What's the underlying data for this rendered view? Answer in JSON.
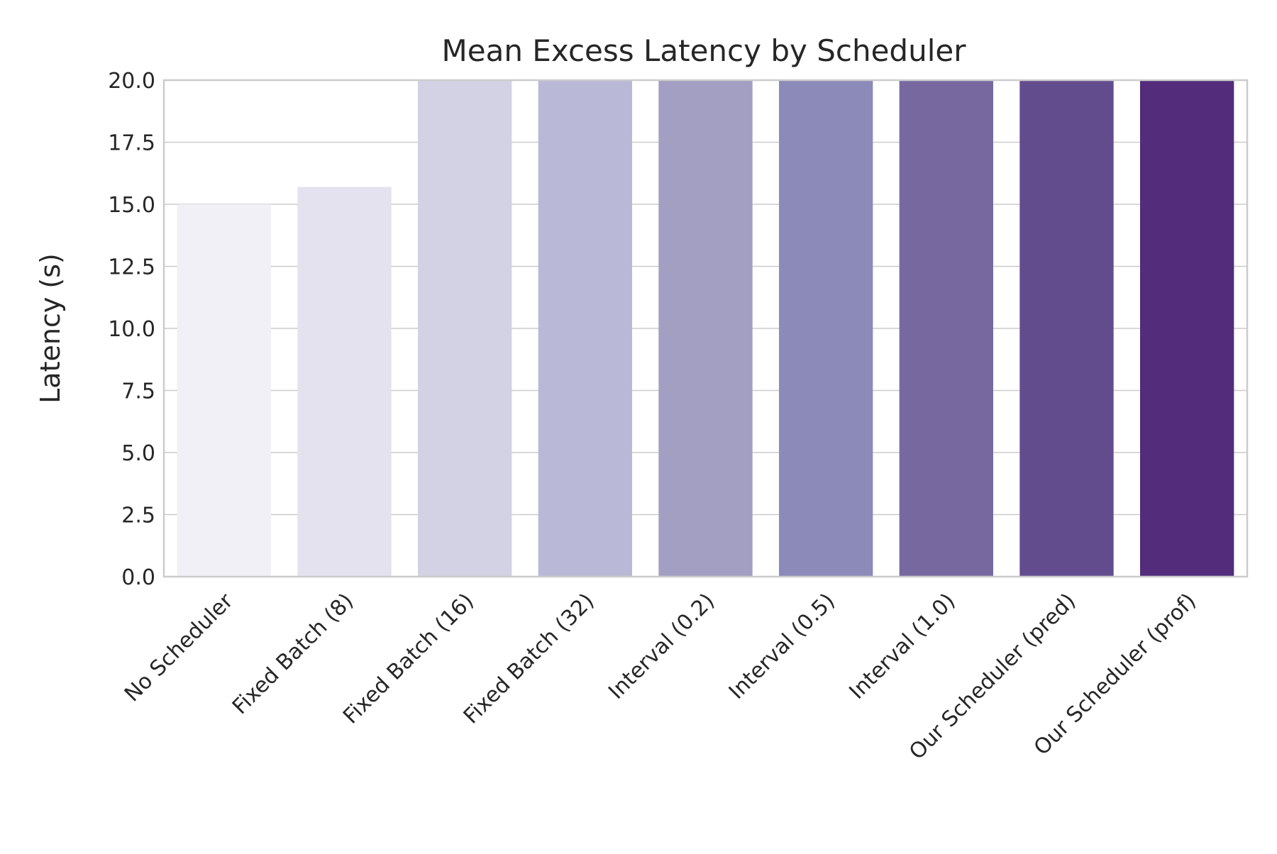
{
  "chart_data": {
    "type": "bar",
    "title": "Mean Excess Latency by Scheduler",
    "xlabel": "",
    "ylabel": "Latency (s)",
    "ylim": [
      0,
      20
    ],
    "yticks": [
      "0.0",
      "2.5",
      "5.0",
      "7.5",
      "10.0",
      "12.5",
      "15.0",
      "17.5",
      "20.0"
    ],
    "grid": true,
    "categories": [
      "No Scheduler",
      "Fixed Batch (8)",
      "Fixed Batch (16)",
      "Fixed Batch (32)",
      "Interval (0.2)",
      "Interval (0.5)",
      "Interval (1.0)",
      "Our Scheduler (pred)",
      "Our Scheduler (prof)"
    ],
    "values": [
      15.0,
      15.7,
      20,
      20,
      20,
      20,
      20,
      20,
      20
    ],
    "colors": [
      "#f1f0f6",
      "#e4e2ee",
      "#d2d2e4",
      "#b9b8d6",
      "#a29fc2",
      "#8c8ab8",
      "#7769a0",
      "#634c8e",
      "#532c7c"
    ]
  }
}
